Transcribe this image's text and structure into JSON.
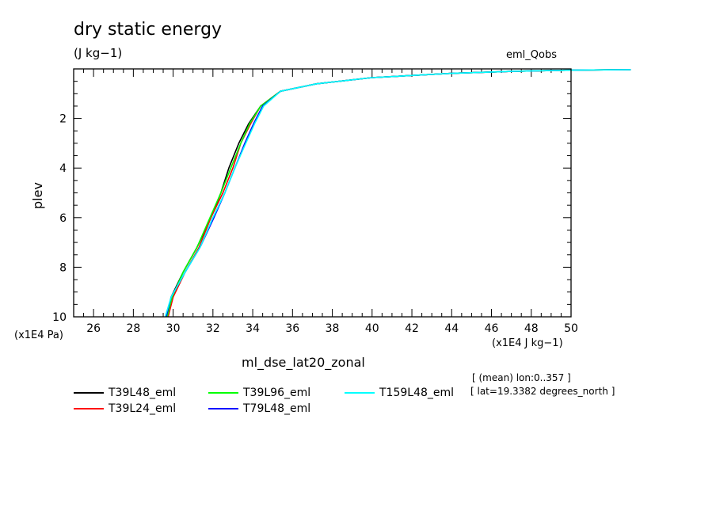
{
  "chart_data": {
    "type": "line",
    "title": "dry static energy",
    "units_label": "(J kg−1)",
    "dataset_label": "eml_Qobs",
    "xlabel": "ml_dse_lat20_zonal",
    "ylabel": "plev",
    "x_units": "(x1E4 J kg−1)",
    "y_units": "(x1E4 Pa)",
    "xlim": [
      25,
      50
    ],
    "ylim": [
      10,
      0
    ],
    "x_ticks": [
      "26",
      "28",
      "30",
      "32",
      "34",
      "36",
      "38",
      "40",
      "42",
      "44",
      "46",
      "48",
      "50"
    ],
    "y_ticks": [
      "2",
      "4",
      "6",
      "8",
      "10"
    ],
    "info_lines": [
      "[ (mean) lon:0..357 ]",
      "[ lat=19.3382 degrees_north ]"
    ],
    "series": [
      {
        "name": "T39L48_eml",
        "color": "#000000",
        "x": [
          29.7,
          29.9,
          30.5,
          31.2,
          31.9,
          32.4,
          32.8,
          33.3,
          33.8,
          34.4,
          35.4,
          37.2,
          40.0,
          44.0,
          47.0,
          50.0,
          53.0
        ],
        "y": [
          10.0,
          9.2,
          8.2,
          7.2,
          6.0,
          5.0,
          4.0,
          3.0,
          2.2,
          1.5,
          0.9,
          0.6,
          0.35,
          0.18,
          0.1,
          0.05,
          0.03
        ]
      },
      {
        "name": "T39L24_eml",
        "color": "#ff0000",
        "x": [
          29.75,
          30.0,
          30.6,
          31.3,
          31.9,
          32.5,
          33.0,
          33.4,
          33.9,
          34.4,
          35.4,
          37.2,
          40.0,
          44.0,
          47.0,
          50.0,
          53.0
        ],
        "y": [
          10.0,
          9.2,
          8.2,
          7.2,
          6.0,
          5.0,
          4.0,
          3.0,
          2.2,
          1.5,
          0.9,
          0.6,
          0.35,
          0.18,
          0.1,
          0.05,
          0.03
        ]
      },
      {
        "name": "T39L96_eml",
        "color": "#00ff00",
        "x": [
          29.7,
          29.95,
          30.5,
          31.2,
          31.85,
          32.4,
          32.9,
          33.4,
          33.85,
          34.4,
          35.4,
          37.2,
          40.0,
          44.0,
          47.0,
          50.0,
          53.0
        ],
        "y": [
          10.0,
          9.2,
          8.2,
          7.2,
          6.0,
          5.0,
          4.0,
          3.0,
          2.2,
          1.5,
          0.9,
          0.6,
          0.35,
          0.18,
          0.1,
          0.05,
          0.03
        ]
      },
      {
        "name": "T79L48_eml",
        "color": "#0000ff",
        "x": [
          29.65,
          29.9,
          30.6,
          31.35,
          32.05,
          32.6,
          33.1,
          33.6,
          34.05,
          34.5,
          35.4,
          37.2,
          40.0,
          44.0,
          47.0,
          50.0,
          53.0
        ],
        "y": [
          10.0,
          9.2,
          8.2,
          7.2,
          6.0,
          5.0,
          4.0,
          3.0,
          2.2,
          1.5,
          0.9,
          0.6,
          0.35,
          0.18,
          0.1,
          0.05,
          0.03
        ]
      },
      {
        "name": "T159L48_eml",
        "color": "#00ffff",
        "x": [
          29.6,
          29.9,
          30.6,
          31.35,
          32.0,
          32.6,
          33.1,
          33.65,
          34.1,
          34.55,
          35.4,
          37.2,
          40.0,
          44.0,
          47.0,
          50.0,
          53.0
        ],
        "y": [
          10.0,
          9.2,
          8.2,
          7.2,
          6.0,
          5.0,
          4.0,
          3.0,
          2.2,
          1.5,
          0.9,
          0.6,
          0.35,
          0.18,
          0.1,
          0.05,
          0.03
        ]
      }
    ]
  }
}
